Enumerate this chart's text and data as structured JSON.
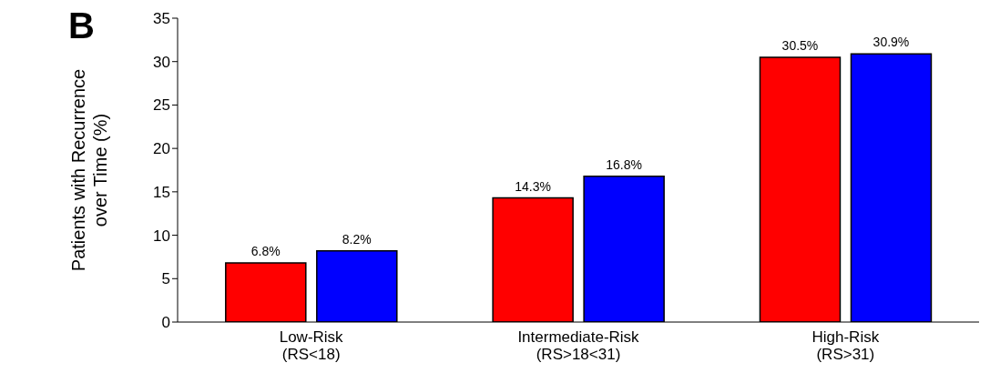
{
  "chart_data": {
    "type": "bar",
    "title": "B",
    "ylabel": "Patients with Recurrence over Time (%)",
    "categories": [
      "Low-Risk (RS<18)",
      "Intermediate-Risk (RS>18<31)",
      "High-Risk (RS>31)"
    ],
    "series": [
      {
        "color": "#ff0000",
        "values": [
          6.8,
          14.3,
          30.5
        ],
        "value_labels": [
          "6.8%",
          "14.3%",
          "30.5%"
        ]
      },
      {
        "color": "#0000ff",
        "values": [
          8.2,
          16.8,
          30.9
        ],
        "value_labels": [
          "8.2%",
          "16.8%",
          "30.9%"
        ]
      }
    ],
    "ylim": [
      0,
      35
    ],
    "yticks": [
      0,
      5,
      10,
      15,
      20,
      25,
      30,
      35
    ],
    "grid": false,
    "legend": false
  }
}
